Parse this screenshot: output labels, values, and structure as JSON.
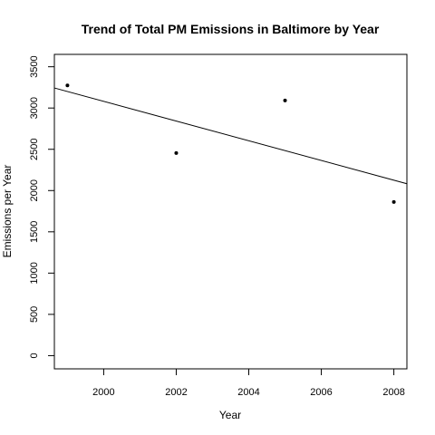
{
  "chart_data": {
    "type": "scatter",
    "title": "Trend of Total PM Emissions in Baltimore by Year",
    "xlabel": "Year",
    "ylabel": "Emissions per Year",
    "x": [
      1999,
      2002,
      2005,
      2008
    ],
    "y": [
      3274,
      2454,
      3091,
      1862
    ],
    "xlim": [
      1998.64,
      2008.36
    ],
    "ylim": [
      -160,
      3650
    ],
    "x_ticks": [
      2000,
      2002,
      2004,
      2006,
      2008
    ],
    "y_ticks": [
      0,
      500,
      1000,
      1500,
      2000,
      2500,
      3000,
      3500
    ],
    "trend_line": {
      "x": [
        1998.64,
        2008.36
      ],
      "y": [
        3243,
        2083
      ]
    },
    "grid": false,
    "colors": {
      "points": "#000000",
      "line": "#000000",
      "axes": "#000000"
    }
  }
}
